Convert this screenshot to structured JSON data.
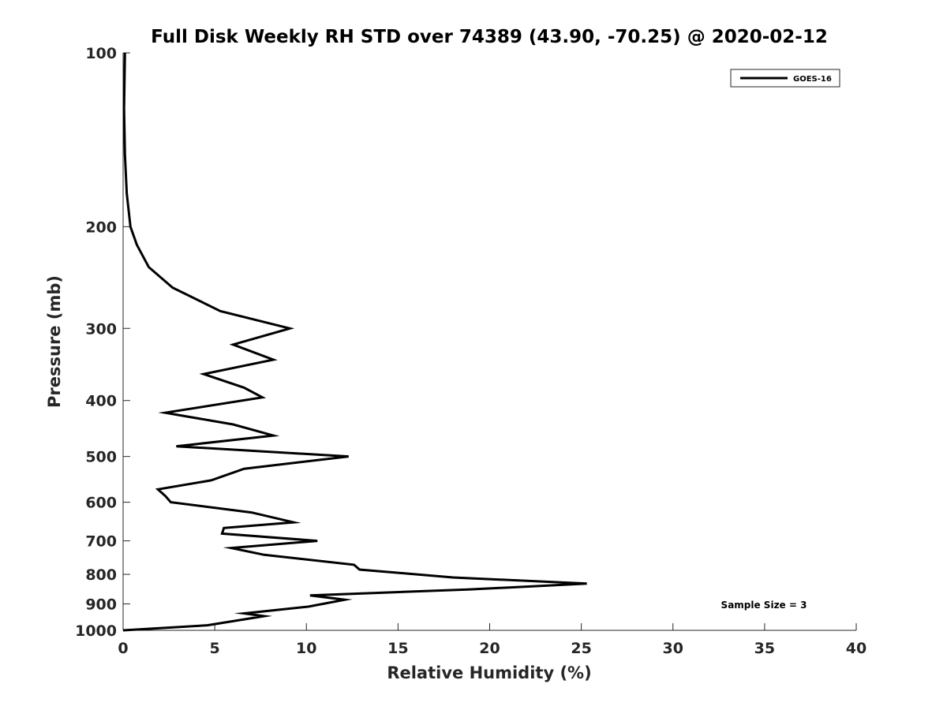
{
  "chart_data": {
    "type": "line",
    "title": "Full Disk Weekly RH STD over 74389 (43.90, -70.25) @ 2020-02-12",
    "xlabel": "Relative Humidity (%)",
    "ylabel": "Pressure (mb)",
    "xlim": [
      0,
      40
    ],
    "ylim": [
      100,
      1000
    ],
    "yscale": "log",
    "y_reversed": true,
    "grid": false,
    "legend_position": "top-right",
    "x_ticks": [
      "0",
      "5",
      "10",
      "15",
      "20",
      "25",
      "30",
      "35",
      "40"
    ],
    "y_ticks": [
      "100",
      "200",
      "300",
      "400",
      "500",
      "600",
      "700",
      "800",
      "900",
      "1000"
    ],
    "annotation": "Sample Size = 3",
    "series": [
      {
        "name": "GOES-16",
        "color": "#000000",
        "points": [
          [
            0.1,
            100
          ],
          [
            0.05,
            125
          ],
          [
            0.1,
            150
          ],
          [
            0.2,
            175
          ],
          [
            0.4,
            200
          ],
          [
            0.75,
            215
          ],
          [
            1.4,
            235
          ],
          [
            2.7,
            255
          ],
          [
            5.3,
            280
          ],
          [
            9.1,
            300
          ],
          [
            6.0,
            320
          ],
          [
            8.2,
            340
          ],
          [
            4.4,
            360
          ],
          [
            6.6,
            380
          ],
          [
            7.6,
            395
          ],
          [
            2.3,
            420
          ],
          [
            6.0,
            440
          ],
          [
            8.2,
            460
          ],
          [
            2.9,
            480
          ],
          [
            12.3,
            500
          ],
          [
            6.6,
            525
          ],
          [
            4.8,
            550
          ],
          [
            1.9,
            570
          ],
          [
            2.3,
            585
          ],
          [
            2.6,
            600
          ],
          [
            7.0,
            625
          ],
          [
            9.3,
            650
          ],
          [
            5.5,
            665
          ],
          [
            5.4,
            680
          ],
          [
            10.6,
            700
          ],
          [
            5.9,
            720
          ],
          [
            7.7,
            740
          ],
          [
            12.6,
            770
          ],
          [
            12.9,
            785
          ],
          [
            18.0,
            810
          ],
          [
            25.3,
            830
          ],
          [
            18.8,
            850
          ],
          [
            10.2,
            870
          ],
          [
            12.1,
            885
          ],
          [
            10.1,
            910
          ],
          [
            6.6,
            935
          ],
          [
            7.7,
            945
          ],
          [
            4.6,
            980
          ],
          [
            0.0,
            1000
          ]
        ]
      }
    ]
  }
}
